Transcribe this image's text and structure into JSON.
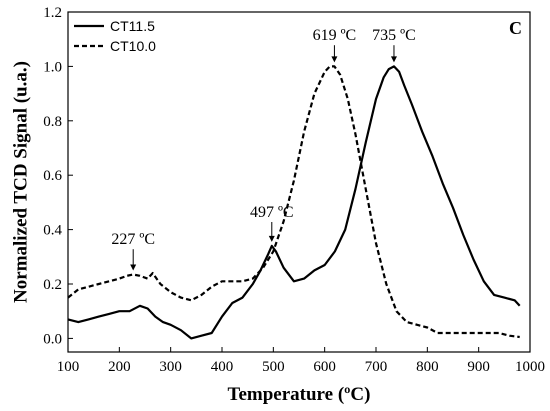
{
  "chart_data": {
    "type": "line",
    "panel_label": "C",
    "xlabel": "Temperature (ºC)",
    "ylabel": "Normalized TCD Signal (u.a.)",
    "xlim": [
      100,
      1000
    ],
    "ylim": [
      -0.05,
      1.2
    ],
    "xticks": [
      100,
      200,
      300,
      400,
      500,
      600,
      700,
      800,
      900,
      1000
    ],
    "yticks": [
      0.0,
      0.2,
      0.4,
      0.6,
      0.8,
      1.0,
      1.2
    ],
    "grid": false,
    "legend": "top-left",
    "series": [
      {
        "name": "CT11.5",
        "style": "solid",
        "x": [
          100,
          120,
          140,
          160,
          180,
          200,
          220,
          240,
          255,
          270,
          285,
          300,
          320,
          340,
          360,
          380,
          400,
          420,
          440,
          460,
          475,
          490,
          497,
          505,
          520,
          540,
          560,
          580,
          600,
          620,
          640,
          660,
          680,
          700,
          715,
          725,
          735,
          745,
          755,
          770,
          790,
          810,
          830,
          850,
          870,
          890,
          910,
          930,
          950,
          970,
          980
        ],
        "y": [
          0.07,
          0.06,
          0.07,
          0.08,
          0.09,
          0.1,
          0.1,
          0.12,
          0.11,
          0.08,
          0.06,
          0.05,
          0.03,
          0.0,
          0.01,
          0.02,
          0.08,
          0.13,
          0.15,
          0.2,
          0.25,
          0.31,
          0.34,
          0.32,
          0.26,
          0.21,
          0.22,
          0.25,
          0.27,
          0.32,
          0.4,
          0.55,
          0.72,
          0.88,
          0.96,
          0.99,
          1.0,
          0.98,
          0.93,
          0.86,
          0.76,
          0.67,
          0.57,
          0.48,
          0.38,
          0.29,
          0.21,
          0.16,
          0.15,
          0.14,
          0.12
        ]
      },
      {
        "name": "CT10.0",
        "style": "dashed",
        "x": [
          100,
          120,
          140,
          160,
          180,
          200,
          215,
          227,
          240,
          255,
          265,
          280,
          300,
          320,
          340,
          360,
          380,
          400,
          420,
          440,
          460,
          480,
          500,
          520,
          540,
          560,
          580,
          600,
          610,
          619,
          630,
          645,
          660,
          680,
          700,
          720,
          740,
          760,
          780,
          800,
          820,
          840,
          860,
          880,
          900,
          920,
          940,
          960,
          980
        ],
        "y": [
          0.15,
          0.18,
          0.19,
          0.2,
          0.21,
          0.22,
          0.23,
          0.235,
          0.23,
          0.22,
          0.24,
          0.2,
          0.17,
          0.15,
          0.14,
          0.16,
          0.19,
          0.21,
          0.21,
          0.21,
          0.22,
          0.26,
          0.32,
          0.43,
          0.58,
          0.76,
          0.9,
          0.98,
          1.0,
          1.0,
          0.97,
          0.88,
          0.75,
          0.55,
          0.35,
          0.2,
          0.1,
          0.06,
          0.05,
          0.04,
          0.02,
          0.02,
          0.02,
          0.02,
          0.02,
          0.02,
          0.02,
          0.01,
          0.005
        ]
      }
    ],
    "annotations": [
      {
        "text": "227 ºC",
        "x": 227,
        "y": 0.235,
        "label_y": 0.35
      },
      {
        "text": "497 ºC",
        "x": 497,
        "y": 0.34,
        "label_y": 0.45
      },
      {
        "text": "619 ºC",
        "x": 619,
        "y": 1.0,
        "label_y": 1.1
      },
      {
        "text": "735 ºC",
        "x": 735,
        "y": 1.0,
        "label_y": 1.1
      }
    ]
  }
}
